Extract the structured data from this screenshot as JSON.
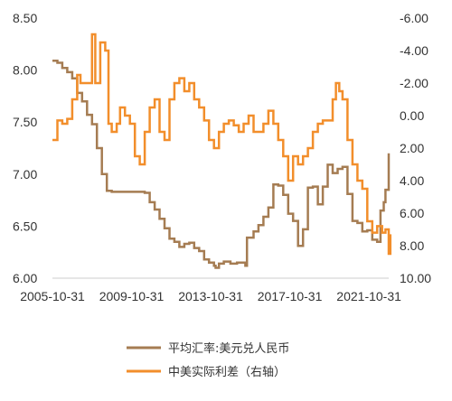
{
  "chart_data": {
    "type": "line",
    "title": "",
    "xlabel": "",
    "ylabel": "",
    "x_ticks": [
      "2005-10-31",
      "2009-10-31",
      "2013-10-31",
      "2017-10-31",
      "2021-10-31"
    ],
    "x_range": [
      "2005-10-31",
      "2022-10-31"
    ],
    "y_left": {
      "ticks": [
        "8.50",
        "8.00",
        "7.50",
        "7.00",
        "6.50",
        "6.00"
      ],
      "ylim": [
        6.0,
        8.5
      ]
    },
    "y_right": {
      "ticks": [
        "-6.00",
        "-4.00",
        "-2.00",
        "0.00",
        "2.00",
        "4.00",
        "6.00",
        "8.00",
        "10.00"
      ],
      "ylim": [
        -6.0,
        10.0
      ],
      "inverted": true
    },
    "legend_position": "bottom",
    "grid": false,
    "series": [
      {
        "name": "平均汇率:美元兑人民币",
        "axis": "left",
        "color": "#a57c52",
        "points": [
          [
            "2005-10",
            8.09
          ],
          [
            "2006-01",
            8.07
          ],
          [
            "2006-04",
            8.02
          ],
          [
            "2006-07",
            7.98
          ],
          [
            "2006-10",
            7.92
          ],
          [
            "2007-01",
            7.78
          ],
          [
            "2007-04",
            7.7
          ],
          [
            "2007-07",
            7.57
          ],
          [
            "2007-10",
            7.48
          ],
          [
            "2008-01",
            7.25
          ],
          [
            "2008-04",
            7.0
          ],
          [
            "2008-07",
            6.84
          ],
          [
            "2008-10",
            6.83
          ],
          [
            "2009-04",
            6.83
          ],
          [
            "2009-10",
            6.83
          ],
          [
            "2010-04",
            6.83
          ],
          [
            "2010-06",
            6.82
          ],
          [
            "2010-09",
            6.73
          ],
          [
            "2010-12",
            6.66
          ],
          [
            "2011-03",
            6.57
          ],
          [
            "2011-06",
            6.48
          ],
          [
            "2011-09",
            6.38
          ],
          [
            "2011-12",
            6.35
          ],
          [
            "2012-03",
            6.3
          ],
          [
            "2012-06",
            6.33
          ],
          [
            "2012-09",
            6.34
          ],
          [
            "2012-12",
            6.29
          ],
          [
            "2013-03",
            6.26
          ],
          [
            "2013-06",
            6.18
          ],
          [
            "2013-09",
            6.15
          ],
          [
            "2013-12",
            6.12
          ],
          [
            "2014-01",
            6.1
          ],
          [
            "2014-03",
            6.14
          ],
          [
            "2014-06",
            6.16
          ],
          [
            "2014-10",
            6.14
          ],
          [
            "2015-02",
            6.15
          ],
          [
            "2015-07",
            6.12
          ],
          [
            "2015-08",
            6.39
          ],
          [
            "2015-12",
            6.45
          ],
          [
            "2016-03",
            6.51
          ],
          [
            "2016-06",
            6.59
          ],
          [
            "2016-09",
            6.68
          ],
          [
            "2016-12",
            6.9
          ],
          [
            "2017-03",
            6.89
          ],
          [
            "2017-06",
            6.8
          ],
          [
            "2017-09",
            6.62
          ],
          [
            "2017-12",
            6.55
          ],
          [
            "2018-03",
            6.31
          ],
          [
            "2018-06",
            6.47
          ],
          [
            "2018-09",
            6.87
          ],
          [
            "2018-12",
            6.88
          ],
          [
            "2019-03",
            6.71
          ],
          [
            "2019-06",
            6.88
          ],
          [
            "2019-09",
            7.09
          ],
          [
            "2019-12",
            7.01
          ],
          [
            "2020-03",
            7.05
          ],
          [
            "2020-06",
            7.07
          ],
          [
            "2020-09",
            6.81
          ],
          [
            "2020-12",
            6.55
          ],
          [
            "2021-03",
            6.53
          ],
          [
            "2021-06",
            6.45
          ],
          [
            "2021-09",
            6.46
          ],
          [
            "2021-12",
            6.37
          ],
          [
            "2022-03",
            6.35
          ],
          [
            "2022-05",
            6.65
          ],
          [
            "2022-07",
            6.73
          ],
          [
            "2022-08",
            6.85
          ],
          [
            "2022-10",
            7.2
          ]
        ]
      },
      {
        "name": "中美实际利差（右轴）",
        "axis": "right",
        "color": "#f28e2b",
        "points": [
          [
            "2005-10",
            1.5
          ],
          [
            "2006-01",
            0.3
          ],
          [
            "2006-04",
            0.5
          ],
          [
            "2006-07",
            0.2
          ],
          [
            "2006-10",
            -1.0
          ],
          [
            "2007-01",
            -2.5
          ],
          [
            "2007-03",
            -2.0
          ],
          [
            "2007-07",
            -2.0
          ],
          [
            "2007-10",
            -5.0
          ],
          [
            "2007-12",
            -2.0
          ],
          [
            "2008-03",
            -4.5
          ],
          [
            "2008-06",
            -4.0
          ],
          [
            "2008-08",
            0.5
          ],
          [
            "2008-10",
            1.0
          ],
          [
            "2009-01",
            0.5
          ],
          [
            "2009-03",
            -0.5
          ],
          [
            "2009-06",
            0.0
          ],
          [
            "2009-09",
            0.5
          ],
          [
            "2009-12",
            2.5
          ],
          [
            "2010-03",
            3.0
          ],
          [
            "2010-06",
            1.0
          ],
          [
            "2010-09",
            -0.5
          ],
          [
            "2010-12",
            -1.0
          ],
          [
            "2011-03",
            1.0
          ],
          [
            "2011-06",
            1.5
          ],
          [
            "2011-09",
            -1.0
          ],
          [
            "2011-12",
            -2.0
          ],
          [
            "2012-03",
            -2.3
          ],
          [
            "2012-06",
            -1.5
          ],
          [
            "2012-09",
            -2.0
          ],
          [
            "2012-12",
            -1.0
          ],
          [
            "2013-03",
            -0.5
          ],
          [
            "2013-06",
            0.3
          ],
          [
            "2013-09",
            1.5
          ],
          [
            "2013-12",
            2.0
          ],
          [
            "2014-03",
            1.0
          ],
          [
            "2014-06",
            0.5
          ],
          [
            "2014-09",
            0.3
          ],
          [
            "2014-12",
            0.6
          ],
          [
            "2015-03",
            1.0
          ],
          [
            "2015-06",
            0.5
          ],
          [
            "2015-09",
            0.0
          ],
          [
            "2015-12",
            1.0
          ],
          [
            "2016-03",
            1.0
          ],
          [
            "2016-06",
            0.5
          ],
          [
            "2016-09",
            -0.3
          ],
          [
            "2016-12",
            0.5
          ],
          [
            "2017-03",
            1.5
          ],
          [
            "2017-06",
            2.5
          ],
          [
            "2017-09",
            4.0
          ],
          [
            "2017-12",
            2.5
          ],
          [
            "2018-03",
            3.0
          ],
          [
            "2018-06",
            2.5
          ],
          [
            "2018-09",
            2.0
          ],
          [
            "2018-12",
            1.0
          ],
          [
            "2019-03",
            0.5
          ],
          [
            "2019-06",
            0.3
          ],
          [
            "2019-09",
            0.3
          ],
          [
            "2019-12",
            -1.0
          ],
          [
            "2020-02",
            -2.0
          ],
          [
            "2020-04",
            -1.5
          ],
          [
            "2020-06",
            -1.0
          ],
          [
            "2020-09",
            1.5
          ],
          [
            "2020-12",
            3.0
          ],
          [
            "2021-03",
            4.0
          ],
          [
            "2021-06",
            4.5
          ],
          [
            "2021-09",
            6.5
          ],
          [
            "2021-12",
            7.2
          ],
          [
            "2022-03",
            6.8
          ],
          [
            "2022-06",
            7.2
          ],
          [
            "2022-08",
            7.0
          ],
          [
            "2022-10",
            8.5
          ],
          [
            "2022-11",
            7.3
          ]
        ]
      }
    ]
  }
}
